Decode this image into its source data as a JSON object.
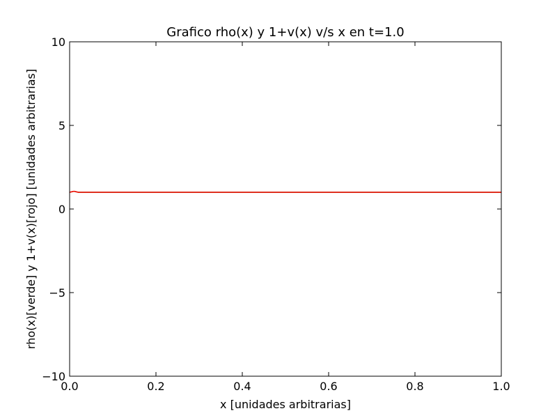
{
  "chart_data": {
    "type": "line",
    "title": "Grafico rho(x) y 1+v(x) v/s x en t=1.0",
    "xlabel": "x [unidades arbitrarias]",
    "ylabel": "rho(x)[verde] y 1+v(x)[rojo] [unidades arbitrarias]",
    "xlim": [
      0.0,
      1.0
    ],
    "ylim": [
      -10,
      10
    ],
    "x_ticks": [
      {
        "value": 0.0,
        "label": "0.0"
      },
      {
        "value": 0.2,
        "label": "0.2"
      },
      {
        "value": 0.4,
        "label": "0.4"
      },
      {
        "value": 0.6,
        "label": "0.6"
      },
      {
        "value": 0.8,
        "label": "0.8"
      },
      {
        "value": 1.0,
        "label": "1.0"
      }
    ],
    "y_ticks": [
      {
        "value": -10,
        "label": "−10"
      },
      {
        "value": -5,
        "label": "−5"
      },
      {
        "value": 0,
        "label": "0"
      },
      {
        "value": 5,
        "label": "5"
      },
      {
        "value": 10,
        "label": "10"
      }
    ],
    "grid": false,
    "series": [
      {
        "name": "rho(x)",
        "color": "#008000",
        "x": [
          0.0,
          0.005,
          0.01,
          0.015,
          0.02,
          0.05,
          0.2,
          0.4,
          0.6,
          0.8,
          1.0
        ],
        "y": [
          1.0,
          1.03,
          1.06,
          1.03,
          1.0,
          1.0,
          1.0,
          1.0,
          1.0,
          1.0,
          1.0
        ]
      },
      {
        "name": "1+v(x)",
        "color": "#ff0000",
        "x": [
          0.0,
          0.005,
          0.01,
          0.015,
          0.02,
          0.05,
          0.2,
          0.4,
          0.6,
          0.8,
          1.0
        ],
        "y": [
          1.0,
          1.03,
          1.06,
          1.03,
          1.0,
          1.0,
          1.0,
          1.0,
          1.0,
          1.0,
          1.0
        ]
      }
    ]
  }
}
